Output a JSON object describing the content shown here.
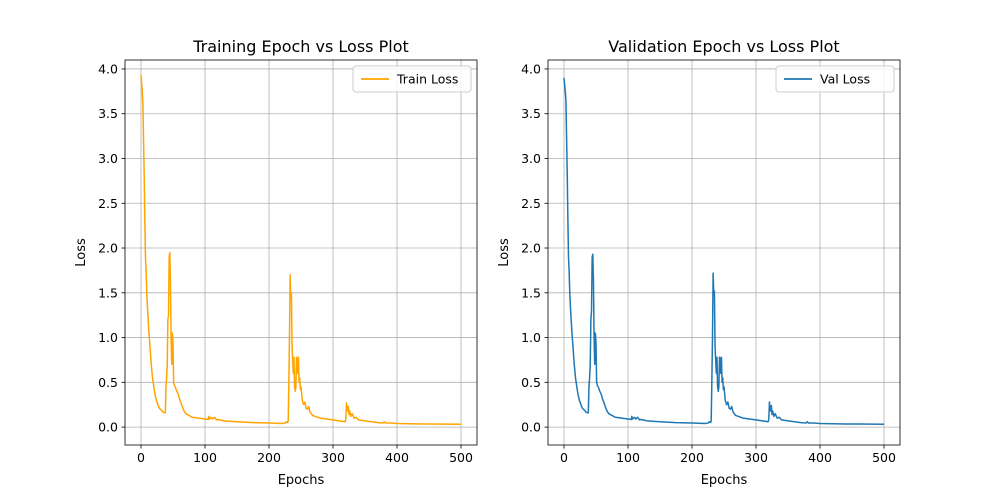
{
  "chart_data": [
    {
      "type": "line",
      "title": "Training Epoch vs Loss Plot",
      "xlabel": "Epochs",
      "ylabel": "Loss",
      "xlim": [
        -25,
        525
      ],
      "ylim": [
        -0.2,
        4.1
      ],
      "xticks": [
        0,
        100,
        200,
        300,
        400,
        500
      ],
      "yticks": [
        0.0,
        0.5,
        1.0,
        1.5,
        2.0,
        2.5,
        3.0,
        3.5,
        4.0
      ],
      "grid": true,
      "legend_position": "top-right",
      "series": [
        {
          "name": "Train Loss",
          "color": "#ffa500",
          "points": [
            [
              0,
              3.93
            ],
            [
              2,
              3.75
            ],
            [
              3,
              3.6
            ],
            [
              4,
              3.2
            ],
            [
              5,
              2.8
            ],
            [
              6,
              2.3
            ],
            [
              7,
              1.9
            ],
            [
              8,
              1.75
            ],
            [
              9,
              1.5
            ],
            [
              10,
              1.35
            ],
            [
              12,
              1.1
            ],
            [
              14,
              0.9
            ],
            [
              16,
              0.7
            ],
            [
              18,
              0.55
            ],
            [
              20,
              0.45
            ],
            [
              22,
              0.36
            ],
            [
              24,
              0.3
            ],
            [
              26,
              0.26
            ],
            [
              28,
              0.22
            ],
            [
              30,
              0.2
            ],
            [
              32,
              0.19
            ],
            [
              34,
              0.17
            ],
            [
              36,
              0.16
            ],
            [
              38,
              0.16
            ],
            [
              39,
              0.45
            ],
            [
              40,
              0.55
            ],
            [
              41,
              0.7
            ],
            [
              42,
              1.2
            ],
            [
              43,
              1.25
            ],
            [
              44,
              1.9
            ],
            [
              45,
              1.95
            ],
            [
              46,
              1.65
            ],
            [
              47,
              1.0
            ],
            [
              48,
              0.7
            ],
            [
              49,
              1.05
            ],
            [
              50,
              0.95
            ],
            [
              51,
              0.5
            ],
            [
              52,
              0.47
            ],
            [
              54,
              0.44
            ],
            [
              56,
              0.4
            ],
            [
              58,
              0.37
            ],
            [
              60,
              0.32
            ],
            [
              62,
              0.28
            ],
            [
              64,
              0.24
            ],
            [
              66,
              0.2
            ],
            [
              68,
              0.17
            ],
            [
              70,
              0.15
            ],
            [
              75,
              0.13
            ],
            [
              80,
              0.11
            ],
            [
              90,
              0.1
            ],
            [
              100,
              0.09
            ],
            [
              105,
              0.085
            ],
            [
              106,
              0.12
            ],
            [
              107,
              0.09
            ],
            [
              110,
              0.11
            ],
            [
              112,
              0.09
            ],
            [
              115,
              0.11
            ],
            [
              118,
              0.08
            ],
            [
              120,
              0.085
            ],
            [
              130,
              0.07
            ],
            [
              150,
              0.06
            ],
            [
              175,
              0.05
            ],
            [
              200,
              0.045
            ],
            [
              220,
              0.04
            ],
            [
              225,
              0.045
            ],
            [
              227,
              0.06
            ],
            [
              229,
              0.05
            ],
            [
              230,
              0.07
            ],
            [
              231,
              0.5
            ],
            [
              232,
              1.0
            ],
            [
              233,
              1.7
            ],
            [
              234,
              1.45
            ],
            [
              235,
              1.5
            ],
            [
              236,
              0.9
            ],
            [
              237,
              0.75
            ],
            [
              238,
              0.6
            ],
            [
              239,
              0.78
            ],
            [
              240,
              0.45
            ],
            [
              241,
              0.4
            ],
            [
              242,
              0.45
            ],
            [
              243,
              0.78
            ],
            [
              244,
              0.76
            ],
            [
              245,
              0.6
            ],
            [
              246,
              0.78
            ],
            [
              247,
              0.5
            ],
            [
              248,
              0.55
            ],
            [
              249,
              0.42
            ],
            [
              250,
              0.45
            ],
            [
              252,
              0.3
            ],
            [
              254,
              0.25
            ],
            [
              256,
              0.28
            ],
            [
              258,
              0.21
            ],
            [
              260,
              0.2
            ],
            [
              262,
              0.23
            ],
            [
              264,
              0.17
            ],
            [
              268,
              0.13
            ],
            [
              272,
              0.12
            ],
            [
              280,
              0.1
            ],
            [
              290,
              0.09
            ],
            [
              300,
              0.08
            ],
            [
              310,
              0.07
            ],
            [
              319,
              0.06
            ],
            [
              320,
              0.09
            ],
            [
              321,
              0.27
            ],
            [
              322,
              0.2
            ],
            [
              323,
              0.18
            ],
            [
              324,
              0.23
            ],
            [
              325,
              0.14
            ],
            [
              326,
              0.18
            ],
            [
              328,
              0.12
            ],
            [
              330,
              0.15
            ],
            [
              333,
              0.1
            ],
            [
              336,
              0.11
            ],
            [
              340,
              0.08
            ],
            [
              350,
              0.07
            ],
            [
              360,
              0.06
            ],
            [
              370,
              0.05
            ],
            [
              378,
              0.045
            ],
            [
              380,
              0.06
            ],
            [
              382,
              0.045
            ],
            [
              390,
              0.045
            ],
            [
              400,
              0.04
            ],
            [
              420,
              0.037
            ],
            [
              440,
              0.035
            ],
            [
              460,
              0.034
            ],
            [
              480,
              0.033
            ],
            [
              500,
              0.032
            ]
          ]
        }
      ]
    },
    {
      "type": "line",
      "title": "Validation Epoch vs Loss Plot",
      "xlabel": "Epochs",
      "ylabel": "Loss",
      "xlim": [
        -25,
        525
      ],
      "ylim": [
        -0.2,
        4.1
      ],
      "xticks": [
        0,
        100,
        200,
        300,
        400,
        500
      ],
      "yticks": [
        0.0,
        0.5,
        1.0,
        1.5,
        2.0,
        2.5,
        3.0,
        3.5,
        4.0
      ],
      "grid": true,
      "legend_position": "top-right",
      "series": [
        {
          "name": "Val Loss",
          "color": "#1f77b4",
          "points": [
            [
              0,
              3.9
            ],
            [
              2,
              3.75
            ],
            [
              3,
              3.65
            ],
            [
              4,
              3.25
            ],
            [
              5,
              2.85
            ],
            [
              6,
              2.35
            ],
            [
              7,
              1.9
            ],
            [
              8,
              1.75
            ],
            [
              9,
              1.5
            ],
            [
              10,
              1.35
            ],
            [
              12,
              1.1
            ],
            [
              14,
              0.9
            ],
            [
              16,
              0.7
            ],
            [
              18,
              0.55
            ],
            [
              20,
              0.45
            ],
            [
              22,
              0.36
            ],
            [
              24,
              0.3
            ],
            [
              26,
              0.26
            ],
            [
              28,
              0.22
            ],
            [
              30,
              0.2
            ],
            [
              32,
              0.19
            ],
            [
              34,
              0.17
            ],
            [
              36,
              0.16
            ],
            [
              38,
              0.16
            ],
            [
              39,
              0.45
            ],
            [
              40,
              0.55
            ],
            [
              41,
              0.7
            ],
            [
              42,
              1.2
            ],
            [
              43,
              1.3
            ],
            [
              44,
              1.9
            ],
            [
              45,
              1.93
            ],
            [
              46,
              1.65
            ],
            [
              47,
              1.0
            ],
            [
              48,
              0.7
            ],
            [
              49,
              1.05
            ],
            [
              50,
              0.95
            ],
            [
              51,
              0.5
            ],
            [
              52,
              0.47
            ],
            [
              54,
              0.44
            ],
            [
              56,
              0.4
            ],
            [
              58,
              0.37
            ],
            [
              60,
              0.32
            ],
            [
              62,
              0.28
            ],
            [
              64,
              0.24
            ],
            [
              66,
              0.2
            ],
            [
              68,
              0.17
            ],
            [
              70,
              0.15
            ],
            [
              75,
              0.13
            ],
            [
              80,
              0.11
            ],
            [
              90,
              0.1
            ],
            [
              100,
              0.09
            ],
            [
              105,
              0.085
            ],
            [
              106,
              0.12
            ],
            [
              107,
              0.09
            ],
            [
              110,
              0.11
            ],
            [
              112,
              0.09
            ],
            [
              115,
              0.11
            ],
            [
              118,
              0.08
            ],
            [
              120,
              0.085
            ],
            [
              130,
              0.07
            ],
            [
              150,
              0.06
            ],
            [
              175,
              0.05
            ],
            [
              200,
              0.045
            ],
            [
              220,
              0.04
            ],
            [
              225,
              0.045
            ],
            [
              227,
              0.06
            ],
            [
              229,
              0.05
            ],
            [
              230,
              0.07
            ],
            [
              231,
              0.5
            ],
            [
              232,
              1.0
            ],
            [
              233,
              1.72
            ],
            [
              234,
              1.48
            ],
            [
              235,
              1.52
            ],
            [
              236,
              0.9
            ],
            [
              237,
              0.75
            ],
            [
              238,
              0.6
            ],
            [
              239,
              0.78
            ],
            [
              240,
              0.45
            ],
            [
              241,
              0.4
            ],
            [
              242,
              0.45
            ],
            [
              243,
              0.78
            ],
            [
              244,
              0.76
            ],
            [
              245,
              0.6
            ],
            [
              246,
              0.78
            ],
            [
              247,
              0.5
            ],
            [
              248,
              0.55
            ],
            [
              249,
              0.42
            ],
            [
              250,
              0.45
            ],
            [
              252,
              0.3
            ],
            [
              254,
              0.25
            ],
            [
              256,
              0.28
            ],
            [
              258,
              0.21
            ],
            [
              260,
              0.2
            ],
            [
              262,
              0.23
            ],
            [
              264,
              0.17
            ],
            [
              268,
              0.13
            ],
            [
              272,
              0.12
            ],
            [
              280,
              0.1
            ],
            [
              290,
              0.09
            ],
            [
              300,
              0.08
            ],
            [
              310,
              0.07
            ],
            [
              319,
              0.06
            ],
            [
              320,
              0.09
            ],
            [
              321,
              0.28
            ],
            [
              322,
              0.2
            ],
            [
              323,
              0.18
            ],
            [
              324,
              0.24
            ],
            [
              325,
              0.14
            ],
            [
              326,
              0.18
            ],
            [
              328,
              0.12
            ],
            [
              330,
              0.15
            ],
            [
              333,
              0.1
            ],
            [
              336,
              0.11
            ],
            [
              340,
              0.08
            ],
            [
              350,
              0.07
            ],
            [
              360,
              0.06
            ],
            [
              370,
              0.05
            ],
            [
              378,
              0.045
            ],
            [
              380,
              0.06
            ],
            [
              382,
              0.045
            ],
            [
              390,
              0.045
            ],
            [
              400,
              0.04
            ],
            [
              420,
              0.037
            ],
            [
              440,
              0.035
            ],
            [
              460,
              0.034
            ],
            [
              480,
              0.033
            ],
            [
              500,
              0.032
            ]
          ]
        }
      ]
    }
  ]
}
